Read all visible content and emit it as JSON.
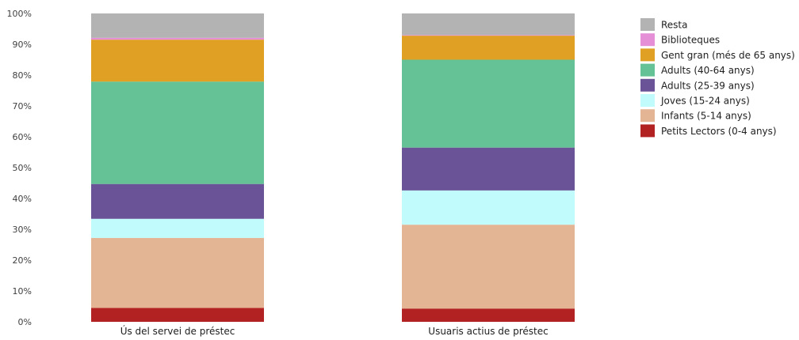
{
  "chart_data": {
    "type": "bar",
    "stacked": true,
    "normalized": true,
    "title": "",
    "xlabel": "",
    "ylabel": "",
    "ylim": [
      0,
      100
    ],
    "y_ticks": [
      "0%",
      "10%",
      "20%",
      "30%",
      "40%",
      "50%",
      "60%",
      "70%",
      "80%",
      "90%",
      "100%"
    ],
    "categories": [
      "Ús del servei de préstec",
      "Usuaris actius de préstec"
    ],
    "legend_position": "right",
    "grid": false,
    "series": [
      {
        "name": "Petits Lectors (0-4 anys)",
        "color": "#b22222",
        "values": [
          4.5,
          4.3
        ]
      },
      {
        "name": "Infants (5-14 anys)",
        "color": "#e3b594",
        "values": [
          22.7,
          27.2
        ]
      },
      {
        "name": "Joves (15-24 anys)",
        "color": "#c2fbfb",
        "values": [
          6.2,
          11.1
        ]
      },
      {
        "name": "Adults (25-39 anys)",
        "color": "#6a5497",
        "values": [
          11.3,
          13.9
        ]
      },
      {
        "name": "Adults (40-64 anys)",
        "color": "#65c296",
        "values": [
          33.2,
          28.5
        ]
      },
      {
        "name": "Gent gran (més de 65 anys)",
        "color": "#e0a024",
        "values": [
          13.6,
          7.8
        ]
      },
      {
        "name": "Biblioteques",
        "color": "#e58fd6",
        "values": [
          0.6,
          0.2
        ]
      },
      {
        "name": "Resta",
        "color": "#b3b3b3",
        "values": [
          7.9,
          7.0
        ]
      }
    ]
  }
}
